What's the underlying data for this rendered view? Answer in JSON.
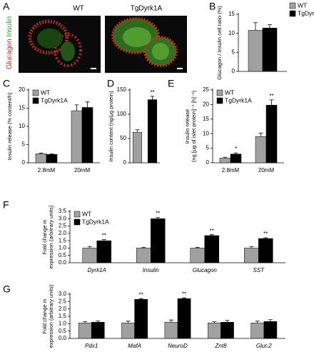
{
  "image_panel": {
    "letter": "A",
    "conditions": [
      "WT",
      "TgDyrk1A"
    ],
    "stains": [
      "Glucagon",
      "Insulin"
    ]
  },
  "chart_data": [
    {
      "type": "bar",
      "panel": "B",
      "ylabel": "Glucagon / Insulin cell ratio (%)",
      "categories": [
        null
      ],
      "series": [
        {
          "name": "WT",
          "color": "#a0a0a0",
          "values": [
            10.8
          ],
          "errors": [
            2.0
          ]
        },
        {
          "name": "TgDyrk1A",
          "color": "#000000",
          "values": [
            11.4
          ],
          "errors": [
            0.9
          ]
        }
      ],
      "ylim": [
        0,
        15
      ],
      "yticks": [
        0,
        5,
        10,
        15
      ],
      "legend": "right"
    },
    {
      "type": "bar",
      "panel": "C",
      "ylabel": "Insulin release (% content/h)",
      "categories": [
        "2.8mM",
        "20mM"
      ],
      "series": [
        {
          "name": "WT",
          "color": "#a0a0a0",
          "values": [
            2.5,
            14.3
          ],
          "errors": [
            0.2,
            1.6
          ]
        },
        {
          "name": "TgDyrk1A",
          "color": "#000000",
          "values": [
            2.3,
            15.2
          ],
          "errors": [
            0.2,
            1.5
          ]
        }
      ],
      "ylim": [
        0,
        20
      ],
      "yticks": [
        0,
        5,
        10,
        15,
        20
      ],
      "legend": "top-left"
    },
    {
      "type": "bar",
      "panel": "D",
      "ylabel": "Insulin content (ng/μg protein)",
      "categories": [
        null,
        null
      ],
      "series": [
        {
          "colors": [
            "#a0a0a0",
            "#000000"
          ],
          "values": [
            63,
            130
          ],
          "errors": [
            5,
            7
          ],
          "significance": [
            null,
            "**"
          ]
        }
      ],
      "ylim": [
        0,
        150
      ],
      "yticks": [
        0,
        50,
        100,
        150
      ],
      "legend": "none"
    },
    {
      "type": "bar",
      "panel": "E",
      "ylabel": [
        "Insulin release",
        "(ng [μg of islet protein]⁻¹ [h]⁻¹)"
      ],
      "categories": [
        "2.8mM",
        "20mM"
      ],
      "series": [
        {
          "name": "WT",
          "color": "#a0a0a0",
          "values": [
            1.6,
            9.0
          ],
          "errors": [
            0.3,
            1.2
          ]
        },
        {
          "name": "TgDyrk1A",
          "color": "#000000",
          "values": [
            3.0,
            19.8
          ],
          "errors": [
            0.4,
            1.8
          ],
          "significance": [
            "*",
            "**"
          ]
        }
      ],
      "ylim": [
        0,
        25
      ],
      "yticks": [
        0,
        5,
        10,
        15,
        20,
        25
      ],
      "legend": "top-left"
    },
    {
      "type": "bar",
      "panel": "F",
      "ylabel": [
        "Fold change in",
        "expression (arbitrary units)"
      ],
      "categories": [
        "Dyrk1A",
        "Insulin",
        "Glucagon",
        "SST"
      ],
      "italic_categories": true,
      "series": [
        {
          "name": "WT",
          "color": "#a0a0a0",
          "values": [
            1.0,
            1.0,
            1.0,
            1.0
          ],
          "errors": [
            0.1,
            0.05,
            0.05,
            0.1
          ]
        },
        {
          "name": "TgDyrk1A",
          "color": "#000000",
          "values": [
            1.5,
            3.0,
            1.85,
            1.65
          ],
          "errors": [
            0.08,
            0.08,
            0.06,
            0.05
          ],
          "significance": [
            "**",
            "**",
            "**",
            "**"
          ]
        }
      ],
      "ylim": [
        0,
        3.5
      ],
      "yticks": [
        {
          "value": 0,
          "label": "0.0"
        },
        0.5,
        {
          "value": 1,
          "label": "1.0"
        },
        1.5,
        {
          "value": 2,
          "label": "2.0"
        },
        2.5,
        {
          "value": 3,
          "label": "3.0"
        },
        3.5
      ],
      "legend": "top-left"
    },
    {
      "type": "bar",
      "panel": "G",
      "ylabel": [
        "Fold change in",
        "expression (arbitrary units)"
      ],
      "categories": [
        "Pdx1",
        "MafA",
        "NeuroD",
        "Znt8",
        "Glut-2"
      ],
      "italic_categories": true,
      "series": [
        {
          "name": "WT",
          "color": "#a0a0a0",
          "values": [
            1.05,
            1.05,
            1.1,
            1.05,
            1.05
          ],
          "errors": [
            0.1,
            0.12,
            0.15,
            0.08,
            0.12
          ]
        },
        {
          "name": "TgDyrk1A",
          "color": "#000000",
          "values": [
            1.1,
            2.65,
            2.7,
            1.1,
            1.15
          ],
          "errors": [
            0.08,
            0.05,
            0.05,
            0.12,
            0.12
          ],
          "significance": [
            null,
            "**",
            "**",
            null,
            null
          ]
        }
      ],
      "ylim": [
        0,
        3
      ],
      "yticks": [
        {
          "value": 0,
          "label": "0.0"
        },
        0.5,
        {
          "value": 1,
          "label": "1.0"
        },
        1.5,
        {
          "value": 2,
          "label": "2.0"
        },
        2.5,
        {
          "value": 3,
          "label": "3.0"
        }
      ],
      "legend": "none",
      "show_legend_names": false
    }
  ]
}
